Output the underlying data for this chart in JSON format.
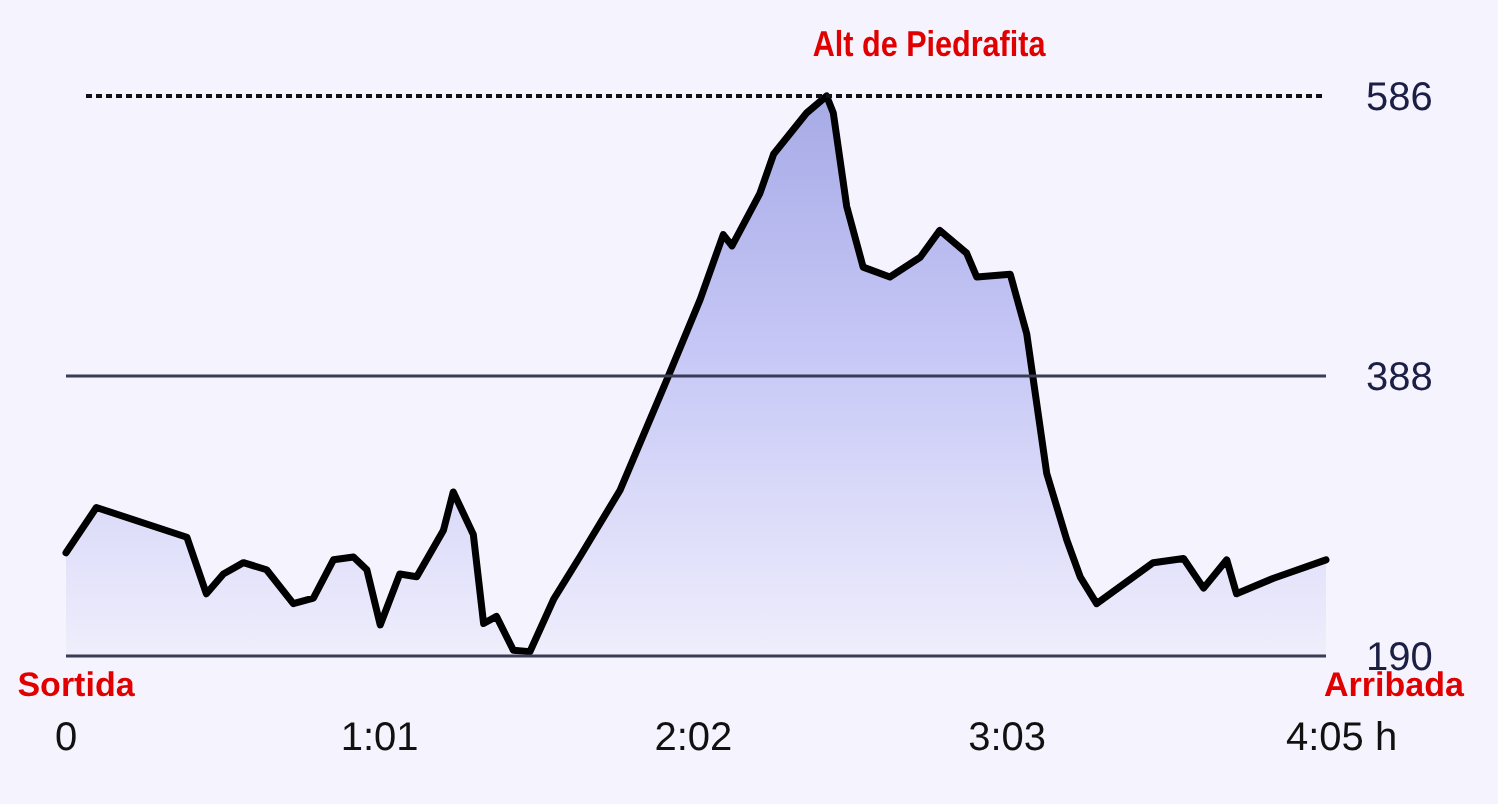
{
  "chart_data": {
    "type": "area",
    "x": [
      0,
      5.9,
      23.5,
      27.3,
      30.6,
      34.5,
      39,
      44.2,
      48.1,
      52,
      55.9,
      58.5,
      61.1,
      64.9,
      68.2,
      73.4,
      75.3,
      79.2,
      81.2,
      83.7,
      87,
      90.2,
      94.8,
      99.9,
      107.7,
      116.8,
      123.3,
      127.8,
      129.5,
      134.9,
      137.6,
      144,
      147.9,
      149.2,
      151.8,
      155,
      160.2,
      166.1,
      169.9,
      175.1,
      177.1,
      183.6,
      186.8,
      190.7,
      194.6,
      197.2,
      200.4,
      211.4,
      217.3,
      221.2,
      225.7,
      227.6,
      234.8,
      245
    ],
    "series": [
      {
        "color": "#000000",
        "values": [
          263,
          295,
          274,
          234,
          248,
          256,
          251,
          227,
          231,
          258,
          260,
          251,
          212,
          248,
          246,
          279,
          306,
          276,
          213,
          218,
          194,
          193,
          230,
          260,
          307,
          385,
          442,
          488,
          480,
          517,
          545,
          574,
          586,
          574,
          508,
          465,
          458,
          472,
          491,
          475,
          458,
          460,
          418,
          319,
          272,
          246,
          227,
          256,
          259,
          238,
          258,
          234,
          245,
          258
        ]
      }
    ],
    "xlim": [
      0,
      245
    ],
    "xticks": [
      0,
      {
        "value": 61,
        "label": "1:01"
      },
      {
        "value": 122,
        "label": "2:02"
      },
      {
        "value": 183,
        "label": "3:03"
      },
      {
        "value": 245,
        "label": "4:05 h"
      }
    ],
    "ylim": [
      190,
      586
    ],
    "yticks": [
      190,
      388,
      586
    ],
    "grid": "y",
    "ref_lines": [
      {
        "axis": "y",
        "value": 586,
        "label": "Alt de Piedrafita",
        "line_style": "dotted"
      }
    ],
    "annotations": [
      "Sortida",
      "Arribada"
    ]
  }
}
